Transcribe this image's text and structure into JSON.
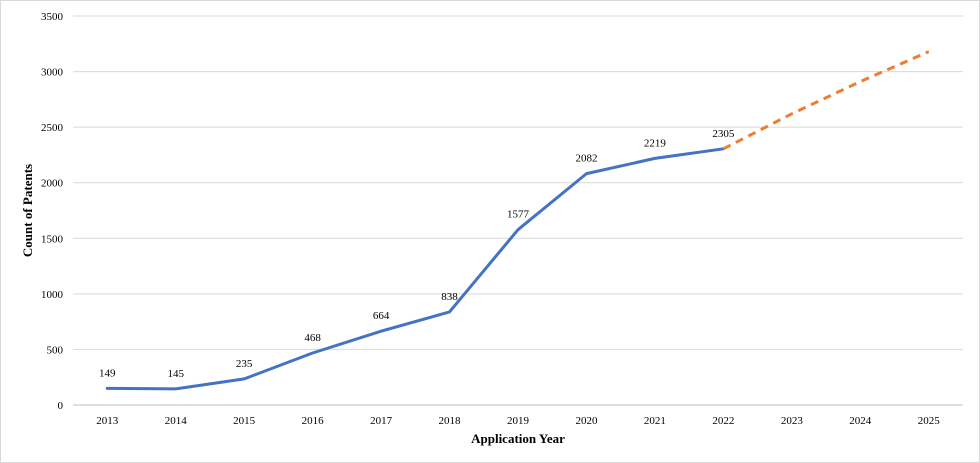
{
  "chart_data": {
    "type": "line",
    "xlabel": "Application Year",
    "ylabel": "Count of Patents",
    "ylim": [
      0,
      3500
    ],
    "yticks": [
      0,
      500,
      1000,
      1500,
      2000,
      2500,
      3000,
      3500
    ],
    "categories": [
      "2013",
      "2014",
      "2015",
      "2016",
      "2017",
      "2018",
      "2019",
      "2020",
      "2021",
      "2022",
      "2023",
      "2024",
      "2025"
    ],
    "grid": "horizontal",
    "series": [
      {
        "style": "solid",
        "color": "#4472c4",
        "x": [
          "2013",
          "2014",
          "2015",
          "2016",
          "2017",
          "2018",
          "2019",
          "2020",
          "2021",
          "2022"
        ],
        "values": [
          149,
          145,
          235,
          468,
          664,
          838,
          1577,
          2082,
          2219,
          2305
        ],
        "data_labels": [
          "149",
          "145",
          "235",
          "468",
          "664",
          "838",
          "1577",
          "2082",
          "2219",
          "2305"
        ]
      },
      {
        "style": "dashed",
        "color": "#ed7d31",
        "x": [
          "2022",
          "2023",
          "2024",
          "2025"
        ],
        "values": [
          2305,
          2620,
          2910,
          3180
        ]
      }
    ]
  }
}
